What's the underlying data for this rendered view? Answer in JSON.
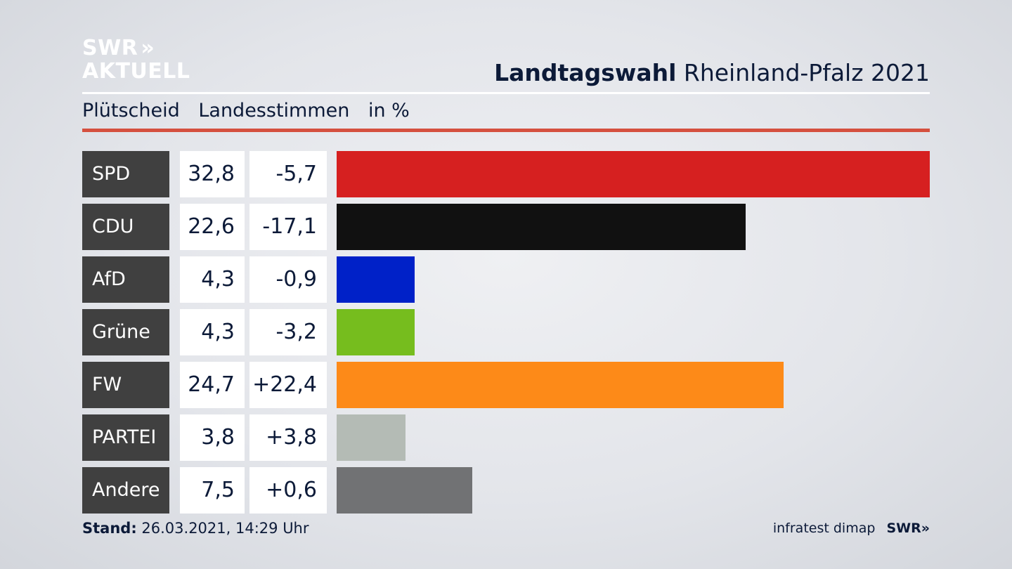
{
  "logo": {
    "line1": "SWR",
    "arrows": "»",
    "line2": "AKTUELL"
  },
  "header": {
    "title_bold": "Landtagswahl",
    "title_rest": "Rheinland-Pfalz 2021",
    "subtitle": [
      "Plütscheid",
      "Landesstimmen",
      "in %"
    ]
  },
  "chart_data": {
    "type": "bar",
    "categories": [
      "SPD",
      "CDU",
      "AfD",
      "Grüne",
      "FW",
      "PARTEI",
      "Andere"
    ],
    "values": [
      32.8,
      22.6,
      4.3,
      4.3,
      24.7,
      3.8,
      7.5
    ],
    "values_label": [
      "32,8",
      "22,6",
      "4,3",
      "4,3",
      "24,7",
      "3,8",
      "7,5"
    ],
    "diff_label": [
      "-5,7",
      "-17,1",
      "-0,9",
      "-3,2",
      "+22,4",
      "+3,8",
      "+0,6"
    ],
    "colors": [
      "#d62020",
      "#111111",
      "#0021c8",
      "#76bd1e",
      "#fd8a18",
      "#b4bbb5",
      "#717274"
    ],
    "xlim": [
      0,
      32.8
    ]
  },
  "footer": {
    "stand_label": "Stand:",
    "stand_value": "26.03.2021, 14:29 Uhr",
    "source": "infratest dimap",
    "brand": "SWR»"
  }
}
